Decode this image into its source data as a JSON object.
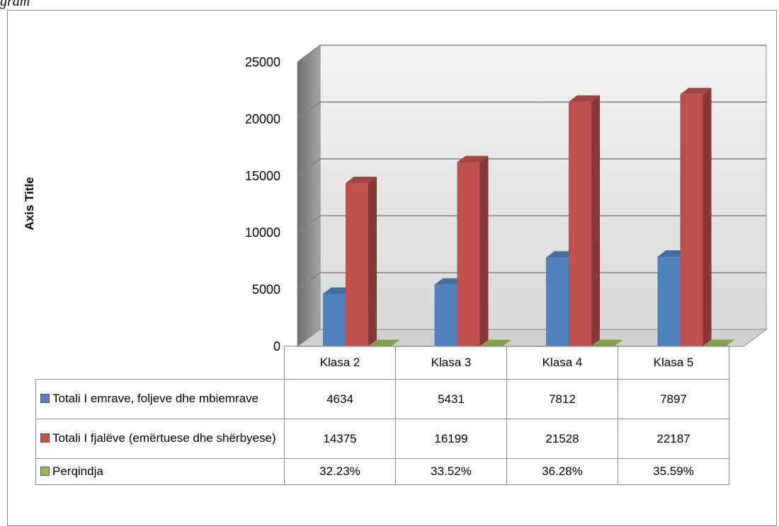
{
  "caption_fragment": "gram",
  "chart_data": {
    "type": "bar",
    "title": "",
    "ylabel": "Axis Title",
    "ylim": [
      0,
      25000
    ],
    "yticks": [
      "0",
      "5000",
      "10000",
      "15000",
      "20000",
      "25000"
    ],
    "categories": [
      "Klasa 2",
      "Klasa 3",
      "Klasa 4",
      "Klasa 5"
    ],
    "series": [
      {
        "name": "Totali I emrave, foljeve dhe mbiemrave",
        "values": [
          4634,
          5431,
          7812,
          7897
        ],
        "labels": [
          "4634",
          "5431",
          "7812",
          "7897"
        ],
        "color": "#4f81bd"
      },
      {
        "name": "Totali I fjalëve (emërtuese dhe shërbyese)",
        "values": [
          14375,
          16199,
          21528,
          22187
        ],
        "labels": [
          "14375",
          "16199",
          "21528",
          "22187"
        ],
        "color": "#c0504d"
      },
      {
        "name": "Perqindja",
        "values": [
          32.23,
          33.52,
          36.28,
          35.59
        ],
        "labels": [
          "32.23%",
          "33.52%",
          "36.28%",
          "35.59%"
        ],
        "color": "#9bbb59"
      }
    ],
    "grid": true,
    "legend": "data-table"
  }
}
